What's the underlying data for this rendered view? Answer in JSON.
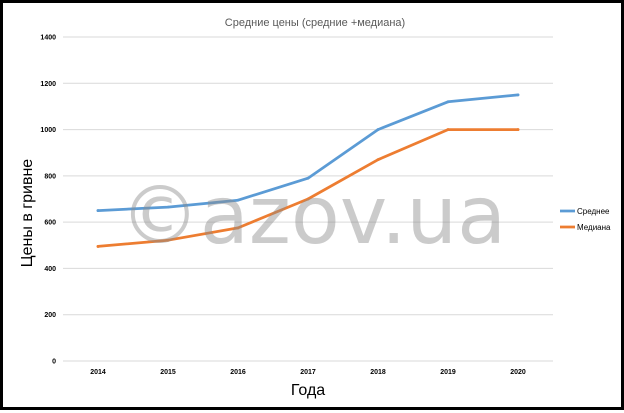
{
  "chart_data": {
    "type": "line",
    "title": "Средние цены (средние +медиана)",
    "xlabel": "Года",
    "ylabel": "Цены в гривне",
    "categories": [
      "2014",
      "2015",
      "2016",
      "2017",
      "2018",
      "2019",
      "2020"
    ],
    "y_ticks": [
      "0",
      "200",
      "400",
      "600",
      "800",
      "1000",
      "1200",
      "1400"
    ],
    "ylim": [
      0,
      1400
    ],
    "grid": true,
    "legend_position": "right",
    "series": [
      {
        "name": "Среднее",
        "color": "#5B9BD5",
        "values": [
          650,
          665,
          695,
          790,
          1000,
          1120,
          1150
        ]
      },
      {
        "name": "Медиана",
        "color": "#ED7D31",
        "values": [
          495,
          522,
          575,
          700,
          870,
          1000,
          1000
        ]
      }
    ]
  },
  "watermark": "©azov.ua"
}
